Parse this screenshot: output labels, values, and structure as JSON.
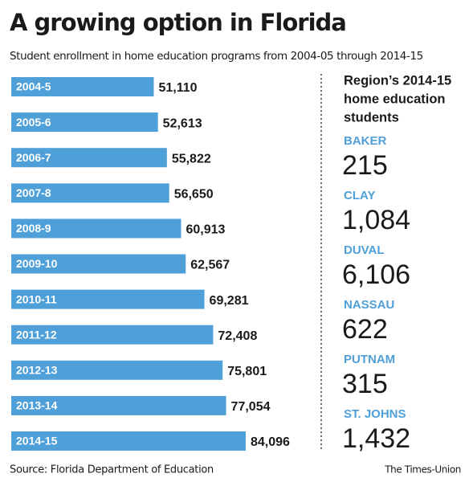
{
  "chart_data": {
    "type": "bar",
    "orientation": "horizontal",
    "title": "A growing option in Florida",
    "subtitle": "Student enrollment in home education programs from 2004-05 through 2014-15",
    "categories": [
      "2004-5",
      "2005-6",
      "2006-7",
      "2007-8",
      "2008-9",
      "2009-10",
      "2010-11",
      "2011-12",
      "2012-13",
      "2013-14",
      "2014-15"
    ],
    "values": [
      51110,
      52613,
      55822,
      56650,
      60913,
      62567,
      69281,
      72408,
      75801,
      77054,
      84096
    ],
    "value_labels": [
      "51,110",
      "52,613",
      "55,822",
      "56,650",
      "60,913",
      "62,567",
      "69,281",
      "72,408",
      "75,801",
      "77,054",
      "84,096"
    ],
    "color": "#4f9fd8",
    "source": "Source: Florida Department of Education",
    "credit": "The Times-Union"
  },
  "sidebar": {
    "title_lines": [
      "Region’s 2014-15",
      "home education",
      "students"
    ],
    "items": [
      {
        "region": "BAKER",
        "students": "215"
      },
      {
        "region": "CLAY",
        "students": "1,084"
      },
      {
        "region": "DUVAL",
        "students": "6,106"
      },
      {
        "region": "NASSAU",
        "students": "622"
      },
      {
        "region": "PUTNAM",
        "students": "315"
      },
      {
        "region": "ST. JOHNS",
        "students": "1,432"
      }
    ]
  }
}
